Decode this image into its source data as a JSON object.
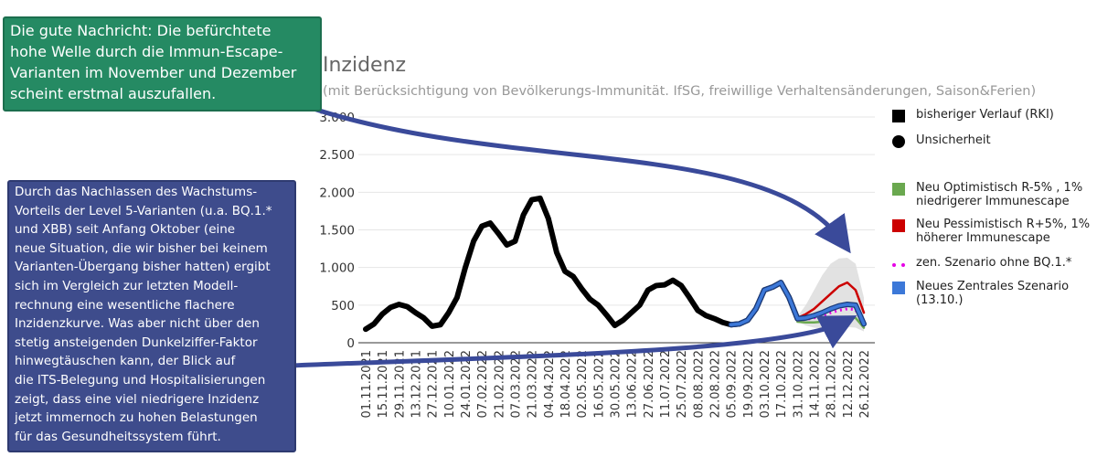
{
  "chart_data": {
    "type": "line",
    "title": "Inzidenz",
    "subtitle": "(mit Berücksichtigung von Bevölkerungs-Immunität. IfSG, freiwillige Verhaltensänderungen, Saison&Ferien)",
    "categories": [
      "01.11.2021",
      null,
      "15.11.2021",
      null,
      "29.11.2021",
      null,
      "13.12.2021",
      null,
      "27.12.2021",
      null,
      "10.01.2022",
      null,
      "24.01.2022",
      null,
      "07.02.2022",
      null,
      "21.02.2022",
      null,
      "07.03.2022",
      null,
      "21.03.2022",
      null,
      "04.04.2022",
      null,
      "18.04.2022",
      null,
      "02.05.2022",
      null,
      "16.05.2022",
      null,
      "30.05.2022",
      null,
      "13.06.2022",
      null,
      "27.06.2022",
      null,
      "11.07.2022",
      null,
      "25.07.2022",
      null,
      "08.08.2022",
      null,
      "22.08.2022",
      null,
      "05.09.2022",
      null,
      "19.09.2022",
      null,
      "03.10.2022",
      null,
      "17.10.2022",
      null,
      "31.10.2022",
      null,
      "14.11.2022",
      null,
      "28.11.2022",
      null,
      "12.12.2022",
      null,
      "26.12.2022"
    ],
    "ylim": [
      0,
      3000
    ],
    "yticks": [
      0,
      500,
      {
        "value": 1000,
        "label": "1.000"
      },
      {
        "value": 1500,
        "label": "1.500"
      },
      {
        "value": 2000,
        "label": "2.000"
      },
      {
        "value": 2500,
        "label": "2.500"
      },
      {
        "value": 3000,
        "label": "3.000"
      }
    ],
    "grid": true,
    "series": [
      {
        "name": "bisheriger Verlauf (RKI)",
        "color": "#000000",
        "values": [
          180,
          250,
          380,
          470,
          510,
          480,
          400,
          330,
          220,
          240,
          400,
          600,
          1000,
          1350,
          1550,
          1590,
          1450,
          1300,
          1350,
          1700,
          1900,
          1920,
          1650,
          1200,
          950,
          880,
          720,
          580,
          500,
          370,
          230,
          300,
          400,
          500,
          700,
          760,
          770,
          830,
          760,
          600,
          430,
          360,
          320,
          270,
          240,
          250,
          300,
          450,
          700,
          740,
          800,
          600,
          320,
          null,
          null,
          null,
          null,
          null,
          null,
          null,
          null
        ]
      },
      {
        "name": "Unsicherheit",
        "color": "#dddddd",
        "low": [
          null,
          null,
          null,
          null,
          null,
          null,
          null,
          null,
          null,
          null,
          null,
          null,
          null,
          null,
          null,
          null,
          null,
          null,
          null,
          null,
          null,
          null,
          null,
          null,
          null,
          null,
          null,
          null,
          null,
          null,
          null,
          null,
          null,
          null,
          null,
          null,
          null,
          null,
          null,
          null,
          null,
          null,
          null,
          null,
          null,
          null,
          null,
          null,
          null,
          null,
          null,
          null,
          280,
          230,
          200,
          190,
          190,
          200,
          210,
          200,
          150
        ],
        "high": [
          null,
          null,
          null,
          null,
          null,
          null,
          null,
          null,
          null,
          null,
          null,
          null,
          null,
          null,
          null,
          null,
          null,
          null,
          null,
          null,
          null,
          null,
          null,
          null,
          null,
          null,
          null,
          null,
          null,
          null,
          null,
          null,
          null,
          null,
          null,
          null,
          null,
          null,
          null,
          null,
          null,
          null,
          null,
          null,
          null,
          null,
          null,
          null,
          null,
          null,
          null,
          null,
          350,
          500,
          700,
          900,
          1050,
          1120,
          1130,
          1050,
          600
        ]
      },
      {
        "name": "Neu Optimistisch R-5% , 1% niedrigerer Immunescape",
        "color": "#6aa84f",
        "values": [
          null,
          null,
          null,
          null,
          null,
          null,
          null,
          null,
          null,
          null,
          null,
          null,
          null,
          null,
          null,
          null,
          null,
          null,
          null,
          null,
          null,
          null,
          null,
          null,
          null,
          null,
          null,
          null,
          null,
          null,
          null,
          null,
          null,
          null,
          null,
          null,
          null,
          null,
          null,
          null,
          null,
          null,
          null,
          null,
          null,
          null,
          null,
          null,
          null,
          null,
          null,
          null,
          280,
          270,
          270,
          280,
          300,
          320,
          340,
          330,
          200
        ]
      },
      {
        "name": "Neu Pessimistisch R+5%, 1% höherer Immunescape",
        "color": "#cc0000",
        "values": [
          null,
          null,
          null,
          null,
          null,
          null,
          null,
          null,
          null,
          null,
          null,
          null,
          null,
          null,
          null,
          null,
          null,
          null,
          null,
          null,
          null,
          null,
          null,
          null,
          null,
          null,
          null,
          null,
          null,
          null,
          null,
          null,
          null,
          null,
          null,
          null,
          null,
          null,
          null,
          null,
          null,
          null,
          null,
          null,
          null,
          null,
          null,
          null,
          null,
          null,
          null,
          null,
          330,
          380,
          450,
          550,
          650,
          750,
          800,
          700,
          400
        ]
      },
      {
        "name": "zen. Szenario ohne BQ.1.*",
        "color": "#e600e6",
        "dashed": true,
        "values": [
          null,
          null,
          null,
          null,
          null,
          null,
          null,
          null,
          null,
          null,
          null,
          null,
          null,
          null,
          null,
          null,
          null,
          null,
          null,
          null,
          null,
          null,
          null,
          null,
          null,
          null,
          null,
          null,
          null,
          null,
          null,
          null,
          null,
          null,
          null,
          null,
          null,
          null,
          null,
          null,
          null,
          null,
          null,
          null,
          null,
          null,
          null,
          null,
          null,
          null,
          null,
          null,
          300,
          310,
          330,
          360,
          400,
          430,
          450,
          440,
          230
        ]
      },
      {
        "name": "Neues Zentrales Szenario (13.10.)",
        "color": "#3c78d8",
        "values": [
          null,
          null,
          null,
          null,
          null,
          null,
          null,
          null,
          null,
          null,
          null,
          null,
          null,
          null,
          null,
          null,
          null,
          null,
          null,
          null,
          null,
          null,
          null,
          null,
          null,
          null,
          null,
          null,
          null,
          null,
          null,
          null,
          null,
          null,
          null,
          null,
          null,
          null,
          null,
          null,
          null,
          null,
          null,
          null,
          240,
          250,
          300,
          450,
          700,
          740,
          800,
          600,
          320,
          330,
          360,
          400,
          450,
          490,
          510,
          500,
          250
        ]
      }
    ]
  },
  "annotations": [
    {
      "lines": [
        "Die gute Nachricht: Die befürchtete",
        "hohe Welle durch die Immun-Escape-",
        "Varianten im November und Dezember",
        "scheint erstmal auszufallen."
      ]
    },
    {
      "lines": [
        "Durch das Nachlassen des Wachstums-",
        "Vorteils der Level 5-Varianten (u.a. BQ.1.*",
        "und XBB) seit Anfang Oktober (eine",
        "neue Situation, die wir bisher bei keinem",
        "Varianten-Übergang bisher hatten) ergibt",
        "sich im Vergleich zur letzten Modell-",
        "rechnung eine wesentliche flachere",
        "Inzidenzkurve. Was aber nicht über den",
        "stetig ansteigenden Dunkelziffer-Faktor",
        "hinwegtäuschen kann, der Blick auf",
        "die ITS-Belegung und Hospitalisierungen",
        "zeigt, dass eine viel niedrigere Inzidenz",
        "jetzt immernoch zu hohen Belastungen",
        "für das Gesundheitssystem führt."
      ]
    }
  ]
}
